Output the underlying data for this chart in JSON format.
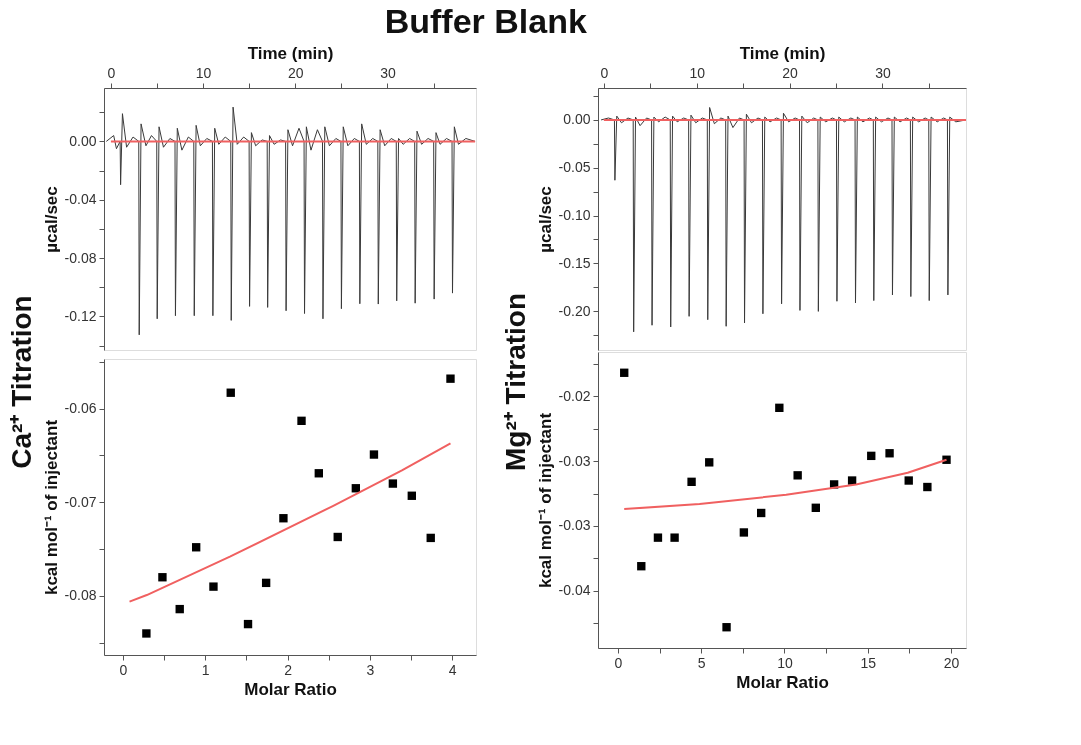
{
  "chart_data": [
    {
      "type": "line",
      "title": "Buffer Blank",
      "annotations": [
        "Ca²⁺ Titration"
      ],
      "xlabel": "Time (min)",
      "ylabel": "µcal/sec",
      "xlim": [
        -0.75,
        39.6
      ],
      "xticks": [
        0,
        {
          "value": 5,
          "label": null
        },
        10,
        {
          "value": 15,
          "label": null
        },
        20,
        {
          "value": 25,
          "label": null
        },
        30,
        {
          "value": 35,
          "label": null
        }
      ],
      "ylim": [
        -0.143,
        0.0366
      ],
      "yticks": [
        {
          "value": 0.02,
          "label": null
        },
        {
          "value": 0,
          "label": "0.00"
        },
        {
          "value": -0.02,
          "label": null
        },
        -0.04,
        {
          "value": -0.06,
          "label": null
        },
        -0.08,
        {
          "value": -0.1,
          "label": null
        },
        -0.12,
        {
          "value": -0.14,
          "label": null
        }
      ],
      "series": [
        {
          "color": "#3a3a3a",
          "x": [
            -0.5,
            0.3,
            0.6,
            1.0,
            1.05,
            1.25,
            1.7,
            2.4,
            3.02,
            3.07,
            3.27,
            3.8,
            4.4,
            4.97,
            5.02,
            5.22,
            5.7,
            6.4,
            6.95,
            7.0,
            7.2,
            7.7,
            8.4,
            8.99,
            9.04,
            9.24,
            9.7,
            10.4,
            11.01,
            11.06,
            11.26,
            11.7,
            12.4,
            13.0,
            13.05,
            13.25,
            13.7,
            14.4,
            14.99,
            15.04,
            15.24,
            15.7,
            16.4,
            16.95,
            17.0,
            17.2,
            17.7,
            18.4,
            18.95,
            19.0,
            19.2,
            19.7,
            20.4,
            20.95,
            21.0,
            21.2,
            21.7,
            22.4,
            22.95,
            23.0,
            23.2,
            23.7,
            24.4,
            24.95,
            25.0,
            25.2,
            25.7,
            26.4,
            26.95,
            27.0,
            27.2,
            27.7,
            28.4,
            28.95,
            29.0,
            29.2,
            29.7,
            30.4,
            30.95,
            31.0,
            31.2,
            31.7,
            32.4,
            32.95,
            33.0,
            33.2,
            33.7,
            34.4,
            35.01,
            35.06,
            35.26,
            35.7,
            36.4,
            37.0,
            37.05,
            37.25,
            37.7,
            38.5,
            39.5
          ],
          "values": [
            0.0,
            0.004,
            -0.005,
            0.0,
            -0.0297,
            0.019,
            -0.004,
            0.003,
            0.0,
            -0.1326,
            0.012,
            -0.003,
            0.004,
            0.0,
            -0.1216,
            0.01,
            -0.004,
            0.002,
            0.0,
            -0.1195,
            0.009,
            -0.006,
            0.003,
            0.0,
            -0.1195,
            0.011,
            -0.003,
            0.002,
            0.0,
            -0.1195,
            0.009,
            -0.002,
            0.003,
            0.0,
            -0.1227,
            0.0235,
            -0.002,
            0.003,
            0.0,
            -0.1131,
            0.006,
            -0.003,
            0.001,
            0.0,
            -0.1138,
            0.004,
            -0.002,
            0.001,
            0.0,
            -0.1161,
            0.008,
            -0.003,
            0.009,
            0.0,
            -0.118,
            0.01,
            -0.006,
            0.008,
            0.0,
            -0.1216,
            0.01,
            -0.003,
            0.002,
            0.0,
            -0.1147,
            0.01,
            -0.003,
            0.002,
            0.0,
            -0.1113,
            0.012,
            -0.002,
            0.002,
            0.0,
            -0.1115,
            0.008,
            -0.003,
            0.002,
            0.0,
            -0.1093,
            0.002,
            -0.002,
            0.002,
            0.0,
            -0.1109,
            0.007,
            -0.002,
            0.002,
            0.0,
            -0.1081,
            0.006,
            -0.002,
            0.002,
            0.0,
            -0.104,
            0.01,
            -0.002,
            0.002,
            0.0
          ]
        },
        {
          "color": "#f06060",
          "x": [
            0,
            39.5
          ],
          "values": [
            0,
            0
          ]
        }
      ]
    },
    {
      "type": "scatter",
      "xlabel": "Molar Ratio",
      "ylabel": "kcal mol⁻¹ of injectant",
      "xlim": [
        -0.23,
        4.29
      ],
      "xticks": [
        0,
        {
          "value": 0.5,
          "label": null
        },
        1,
        {
          "value": 1.5,
          "label": null
        },
        2,
        {
          "value": 2.5,
          "label": null
        },
        3,
        {
          "value": 3.5,
          "label": null
        },
        4
      ],
      "ylim": [
        -0.0863,
        -0.0547
      ],
      "yticks": [
        {
          "value": -0.055,
          "label": null
        },
        -0.06,
        {
          "value": -0.065,
          "label": null
        },
        -0.07,
        {
          "value": -0.075,
          "label": null
        },
        -0.08,
        {
          "value": -0.085,
          "label": null
        }
      ],
      "series": [
        {
          "color": "#000000",
          "marker": "square",
          "x": [
            0.285,
            0.48,
            0.69,
            0.89,
            1.1,
            1.31,
            1.52,
            1.74,
            1.95,
            2.17,
            2.38,
            2.61,
            2.83,
            3.05,
            3.28,
            3.51,
            3.74,
            3.98
          ],
          "values": [
            -0.084,
            -0.078,
            -0.0814,
            -0.0748,
            -0.079,
            -0.0583,
            -0.083,
            -0.0786,
            -0.0717,
            -0.0613,
            -0.0669,
            -0.0737,
            -0.0685,
            -0.0649,
            -0.068,
            -0.0693,
            -0.0738,
            -0.0568
          ]
        },
        {
          "type": "line",
          "color": "#f06060",
          "x": [
            0.08,
            0.29,
            1.3,
            2.55,
            3.39,
            3.98
          ],
          "values": [
            -0.0806,
            -0.0799,
            -0.0758,
            -0.0704,
            -0.0666,
            -0.0637
          ]
        }
      ]
    },
    {
      "type": "line",
      "annotations": [
        "Mg²⁺ Titration"
      ],
      "xlabel": "Time (min)",
      "ylabel": "µcal/sec",
      "xlim": [
        -0.63,
        39.0
      ],
      "xticks": [
        0,
        {
          "value": 5,
          "label": null
        },
        10,
        {
          "value": 15,
          "label": null
        },
        20,
        {
          "value": 25,
          "label": null
        },
        30,
        {
          "value": 35,
          "label": null
        }
      ],
      "ylim": [
        -0.2407,
        0.0334
      ],
      "yticks": [
        {
          "value": 0.025,
          "label": null
        },
        {
          "value": 0,
          "label": "0.00"
        },
        {
          "value": -0.025,
          "label": null
        },
        -0.05,
        {
          "value": -0.075,
          "label": null
        },
        {
          "value": -0.1,
          "label": "-0.10"
        },
        {
          "value": -0.125,
          "label": null
        },
        -0.15,
        {
          "value": -0.175,
          "label": null
        },
        {
          "value": -0.2,
          "label": "-0.20"
        },
        {
          "value": -0.225,
          "label": null
        }
      ],
      "series": [
        {
          "color": "#3a3a3a",
          "x": [
            -0.3,
            0.5,
            1.14,
            1.19,
            1.39,
            1.9,
            2.6,
            3.16,
            3.21,
            3.41,
            3.9,
            4.6,
            5.14,
            5.19,
            5.39,
            5.9,
            6.6,
            7.15,
            7.2,
            7.4,
            7.9,
            8.6,
            9.13,
            9.18,
            9.38,
            9.9,
            10.6,
            11.14,
            11.19,
            11.39,
            11.9,
            12.6,
            13.12,
            13.17,
            13.37,
            13.9,
            14.6,
            15.1,
            15.15,
            15.35,
            15.9,
            16.6,
            17.08,
            17.13,
            17.33,
            17.9,
            18.6,
            19.09,
            19.14,
            19.34,
            19.9,
            20.6,
            21.07,
            21.12,
            21.32,
            21.9,
            22.6,
            23.05,
            23.1,
            23.3,
            23.9,
            24.6,
            25.05,
            25.1,
            25.3,
            25.9,
            26.6,
            27.05,
            27.1,
            27.3,
            27.9,
            28.6,
            29.02,
            29.07,
            29.27,
            29.9,
            30.6,
            31.03,
            31.08,
            31.28,
            31.9,
            32.6,
            33.01,
            33.06,
            33.26,
            33.9,
            34.6,
            34.99,
            35.04,
            35.24,
            35.9,
            36.6,
            37.0,
            37.05,
            37.25,
            37.9,
            39.0
          ],
          "values": [
            0.0,
            0.002,
            0.0,
            -0.0631,
            0.004,
            -0.003,
            0.002,
            0.0,
            -0.2217,
            0.003,
            -0.006,
            0.002,
            0.0,
            -0.2148,
            0.003,
            -0.002,
            0.003,
            0.0,
            -0.2166,
            0.004,
            -0.002,
            0.002,
            0.0,
            -0.2055,
            0.005,
            -0.003,
            0.002,
            0.0,
            -0.209,
            0.013,
            -0.004,
            0.002,
            0.0,
            -0.2159,
            0.004,
            -0.008,
            0.002,
            0.0,
            -0.2124,
            0.006,
            -0.003,
            0.002,
            0.0,
            -0.2028,
            0.003,
            -0.002,
            0.002,
            0.0,
            -0.1924,
            0.007,
            -0.002,
            0.002,
            0.0,
            -0.1993,
            0.004,
            -0.003,
            0.002,
            0.0,
            -0.2003,
            0.003,
            -0.002,
            0.002,
            0.0,
            -0.1897,
            0.003,
            -0.002,
            0.002,
            0.0,
            -0.1914,
            0.003,
            -0.002,
            0.002,
            0.0,
            -0.189,
            0.003,
            -0.002,
            0.002,
            0.0,
            -0.1831,
            0.003,
            -0.002,
            0.002,
            0.0,
            -0.1848,
            0.003,
            -0.002,
            0.002,
            0.0,
            -0.189,
            0.003,
            -0.002,
            0.002,
            0.0,
            -0.1831,
            0.003,
            -0.002,
            0.0
          ]
        },
        {
          "color": "#f06060",
          "x": [
            0,
            39.0
          ],
          "values": [
            0,
            0
          ]
        }
      ]
    },
    {
      "type": "scatter",
      "xlabel": "Molar Ratio",
      "ylabel": "kcal mol⁻¹ of injectant",
      "xlim": [
        -1.2,
        20.9
      ],
      "xticks": [
        0,
        {
          "value": 2.5,
          "label": null
        },
        5,
        {
          "value": 7.5,
          "label": null
        },
        10,
        {
          "value": 12.5,
          "label": null
        },
        15,
        {
          "value": 17.5,
          "label": null
        },
        20
      ],
      "ylim": [
        -0.0394,
        -0.0166
      ],
      "yticks": [
        {
          "value": -0.0175,
          "label": null
        },
        -0.02,
        {
          "value": -0.0225,
          "label": null
        },
        {
          "value": -0.025,
          "label": "-0.03"
        },
        {
          "value": -0.0275,
          "label": null
        },
        -0.03,
        {
          "value": -0.0325,
          "label": null
        },
        {
          "value": -0.035,
          "label": "-0.04"
        },
        {
          "value": -0.0375,
          "label": null
        }
      ],
      "series": [
        {
          "color": "#000000",
          "marker": "square",
          "x": [
            0.375,
            1.4,
            2.4,
            3.4,
            4.42,
            5.48,
            6.52,
            7.56,
            8.6,
            9.69,
            10.79,
            11.88,
            12.98,
            14.06,
            15.21,
            16.31,
            17.46,
            18.58,
            19.73
          ],
          "values": [
            -0.0182,
            -0.0331,
            -0.0309,
            -0.0309,
            -0.0266,
            -0.0251,
            -0.0378,
            -0.0305,
            -0.029,
            -0.0209,
            -0.0261,
            -0.0286,
            -0.0268,
            -0.0265,
            -0.0246,
            -0.0244,
            -0.0265,
            -0.027,
            -0.0249
          ]
        },
        {
          "type": "line",
          "color": "#f06060",
          "x": [
            0.375,
            4.9,
            10.1,
            14.3,
            17.4,
            19.73
          ],
          "values": [
            -0.0287,
            -0.0283,
            -0.0276,
            -0.0268,
            -0.0259,
            -0.0249
          ]
        }
      ]
    }
  ]
}
